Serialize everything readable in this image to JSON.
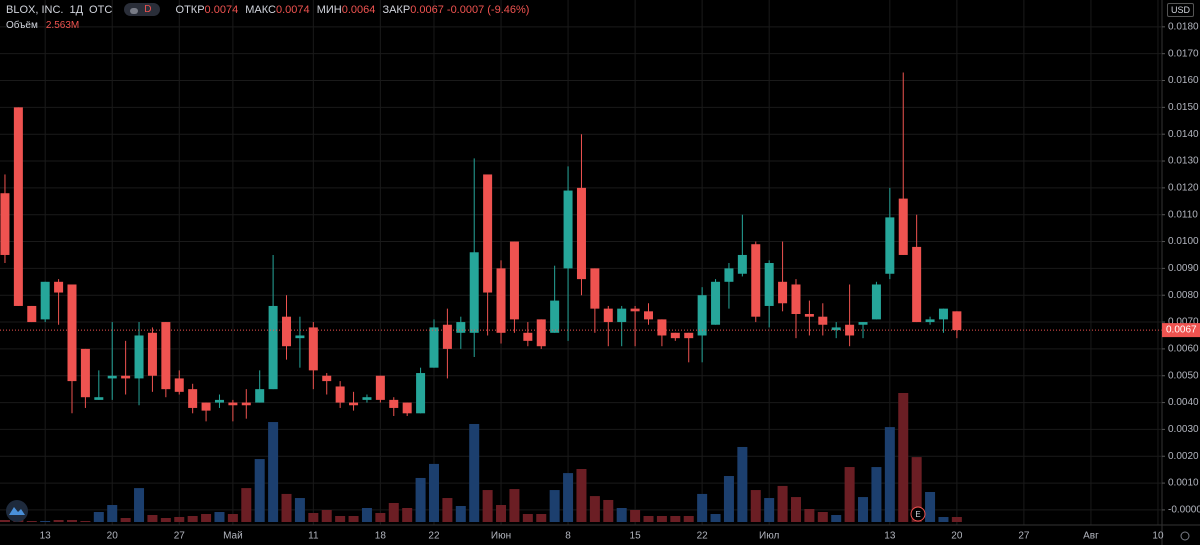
{
  "chart_data": {
    "type": "candlestick",
    "title": "BLOX, INC.",
    "interval": "1Д",
    "exchange": "OTC",
    "badge": "D",
    "currency": "USD",
    "open_label": "ОТКР",
    "high_label": "МАКС",
    "low_label": "МИН",
    "close_label": "ЗАКР",
    "change_label": "-0.0007 (-9.46%)",
    "volume_label": "Объём",
    "volume_last_label": "2.563M",
    "event_marker": "E",
    "up_color": "#26a69a",
    "down_color": "#ef5350",
    "volume_up_color": "#1c3f6e",
    "volume_down_color": "#6b1e24",
    "grid": true,
    "ylim": [
      -0.00045,
      0.019
    ],
    "xlim": [
      -0.37,
      86.3
    ],
    "yticks": [
      {
        "value": 0.018,
        "label": "0.0180"
      },
      {
        "value": 0.017,
        "label": "0.0170"
      },
      {
        "value": 0.016,
        "label": "0.0160"
      },
      {
        "value": 0.015,
        "label": "0.0150"
      },
      {
        "value": 0.014,
        "label": "0.0140"
      },
      {
        "value": 0.013,
        "label": "0.0130"
      },
      {
        "value": 0.012,
        "label": "0.0120"
      },
      {
        "value": 0.011,
        "label": "0.0110"
      },
      {
        "value": 0.01,
        "label": "0.0100"
      },
      {
        "value": 0.009,
        "label": "0.0090"
      },
      {
        "value": 0.008,
        "label": "0.0080"
      },
      {
        "value": 0.007,
        "label": "0.0070"
      },
      {
        "value": 0.006,
        "label": "0.0060"
      },
      {
        "value": 0.005,
        "label": "0.0050"
      },
      {
        "value": 0.004,
        "label": "0.0040"
      },
      {
        "value": 0.003,
        "label": "0.0030"
      },
      {
        "value": 0.002,
        "label": "0.0020"
      },
      {
        "value": 0.001,
        "label": "0.0010"
      },
      {
        "value": 0,
        "label": "-0.0000"
      }
    ],
    "xticks": [
      {
        "value": 3,
        "label": "13"
      },
      {
        "value": 8,
        "label": "20"
      },
      {
        "value": 13,
        "label": "27"
      },
      {
        "value": 17,
        "label": "Май"
      },
      {
        "value": 23,
        "label": "11"
      },
      {
        "value": 28,
        "label": "18"
      },
      {
        "value": 32,
        "label": "22"
      },
      {
        "value": 37,
        "label": "Июн"
      },
      {
        "value": 42,
        "label": "8"
      },
      {
        "value": 47,
        "label": "15"
      },
      {
        "value": 52,
        "label": "22"
      },
      {
        "value": 57,
        "label": "Июл"
      },
      {
        "value": 66,
        "label": "13"
      },
      {
        "value": 71,
        "label": "20"
      },
      {
        "value": 76,
        "label": "27"
      },
      {
        "value": 81,
        "label": "Авг"
      },
      {
        "value": 86,
        "label": "10"
      }
    ],
    "open": [
      0.0118,
      0.015,
      0.0076,
      0.0071,
      0.0085,
      0.0084,
      0.006,
      0.0041,
      0.0049,
      0.005,
      0.0049,
      0.0066,
      0.007,
      0.0049,
      0.0045,
      0.004,
      0.004,
      0.004,
      0.004,
      0.004,
      0.0045,
      0.0072,
      0.0064,
      0.0068,
      0.005,
      0.0046,
      0.004,
      0.0041,
      0.005,
      0.0041,
      0.004,
      0.0036,
      0.0053,
      0.0069,
      0.0066,
      0.0066,
      0.0125,
      0.009,
      0.01,
      0.0066,
      0.0071,
      0.0066,
      0.009,
      0.012,
      0.009,
      0.0075,
      0.007,
      0.0075,
      0.0074,
      0.0071,
      0.0066,
      0.0066,
      0.0065,
      0.0069,
      0.0085,
      0.0088,
      0.0099,
      0.0076,
      0.0085,
      0.0084,
      0.0073,
      0.0072,
      0.0067,
      0.0069,
      0.0069,
      0.0071,
      0.0088,
      0.0116,
      0.0098,
      0.007,
      0.0071,
      0.0074
    ],
    "high": [
      0.0125,
      0.015,
      0.0076,
      0.0085,
      0.0086,
      0.0084,
      0.006,
      0.0052,
      0.007,
      0.0063,
      0.007,
      0.0068,
      0.007,
      0.0052,
      0.0047,
      0.004,
      0.0043,
      0.0041,
      0.0045,
      0.0052,
      0.0095,
      0.008,
      0.0072,
      0.007,
      0.0051,
      0.0048,
      0.0044,
      0.0043,
      0.005,
      0.0042,
      0.004,
      0.0053,
      0.0071,
      0.0075,
      0.0072,
      0.0131,
      0.0125,
      0.0093,
      0.01,
      0.007,
      0.0071,
      0.0091,
      0.0128,
      0.014,
      0.009,
      0.0076,
      0.0076,
      0.0076,
      0.0077,
      0.0071,
      0.0066,
      0.0066,
      0.0083,
      0.0086,
      0.0092,
      0.011,
      0.01,
      0.0093,
      0.01,
      0.0086,
      0.0078,
      0.0077,
      0.007,
      0.0084,
      0.007,
      0.0085,
      0.012,
      0.0163,
      0.011,
      0.0072,
      0.0075,
      0.0074
    ],
    "low": [
      0.0092,
      0.0076,
      0.007,
      0.007,
      0.0069,
      0.0036,
      0.0038,
      0.0041,
      0.0041,
      0.0043,
      0.0039,
      0.0044,
      0.0042,
      0.0043,
      0.0036,
      0.0033,
      0.0038,
      0.0033,
      0.0034,
      0.004,
      0.0045,
      0.0056,
      0.0053,
      0.0045,
      0.0043,
      0.0038,
      0.0037,
      0.004,
      0.004,
      0.0035,
      0.0035,
      0.0036,
      0.0053,
      0.0049,
      0.006,
      0.0057,
      0.0065,
      0.0062,
      0.0066,
      0.0061,
      0.006,
      0.0066,
      0.0063,
      0.008,
      0.0066,
      0.0061,
      0.0061,
      0.0061,
      0.0069,
      0.0061,
      0.0063,
      0.0055,
      0.0055,
      0.0069,
      0.0075,
      0.0087,
      0.007,
      0.0068,
      0.0074,
      0.0064,
      0.0065,
      0.0065,
      0.0064,
      0.0061,
      0.0064,
      0.0071,
      0.0086,
      0.0095,
      0.007,
      0.0069,
      0.0066,
      0.0064
    ],
    "close": [
      0.0095,
      0.0076,
      0.007,
      0.0085,
      0.0081,
      0.0048,
      0.0042,
      0.0042,
      0.005,
      0.0049,
      0.0065,
      0.005,
      0.0045,
      0.0044,
      0.0038,
      0.0037,
      0.0041,
      0.0039,
      0.0039,
      0.0045,
      0.0076,
      0.0061,
      0.0065,
      0.0052,
      0.0048,
      0.004,
      0.0039,
      0.0042,
      0.0041,
      0.0038,
      0.0036,
      0.0051,
      0.0068,
      0.006,
      0.007,
      0.0096,
      0.0081,
      0.0066,
      0.0071,
      0.0063,
      0.0061,
      0.0078,
      0.0119,
      0.0086,
      0.0075,
      0.007,
      0.0075,
      0.0074,
      0.0071,
      0.0065,
      0.0064,
      0.0064,
      0.008,
      0.0085,
      0.009,
      0.0095,
      0.0072,
      0.0092,
      0.0077,
      0.0073,
      0.0072,
      0.0069,
      0.0068,
      0.0065,
      0.007,
      0.0084,
      0.0109,
      0.0095,
      0.007,
      0.0071,
      0.0075,
      0.0067
    ],
    "volume": [
      1.03,
      1.03,
      0.51,
      0.51,
      1.03,
      1.03,
      0.51,
      5.13,
      8.72,
      2.05,
      17.4,
      3.59,
      2.05,
      2.57,
      3.08,
      4.1,
      5.13,
      4.1,
      17.4,
      32.3,
      51.3,
      14.4,
      12.3,
      4.62,
      6.16,
      3.08,
      3.08,
      7.18,
      4.62,
      9.75,
      7.18,
      22.6,
      29.8,
      12.3,
      8.21,
      50.3,
      16.4,
      8.72,
      16.9,
      4.1,
      4.1,
      16.4,
      25.1,
      27.2,
      13.3,
      11.3,
      7.18,
      6.16,
      3.08,
      3.08,
      3.08,
      3.08,
      14.4,
      4.1,
      23.6,
      38.5,
      16.4,
      12.3,
      18.5,
      12.8,
      6.67,
      5.13,
      3.59,
      28.2,
      12.8,
      28.2,
      48.7,
      66.2,
      33.3,
      15.4,
      2.56,
      2.563
    ]
  }
}
